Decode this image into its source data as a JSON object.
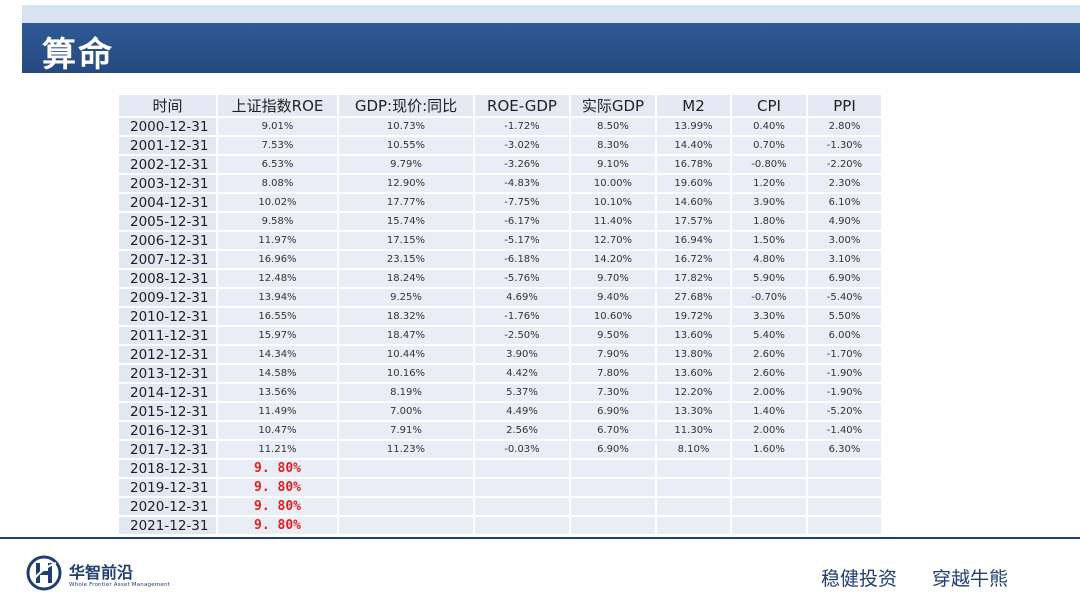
{
  "page": {
    "title": "算命"
  },
  "table": {
    "headers": [
      "时间",
      "上证指数ROE",
      "GDP:现价:同比",
      "ROE-GDP",
      "实际GDP",
      "M2",
      "CPI",
      "PPI"
    ],
    "rows": [
      [
        "2000-12-31",
        "9.01%",
        "10.73%",
        "-1.72%",
        "8.50%",
        "13.99%",
        "0.40%",
        "2.80%"
      ],
      [
        "2001-12-31",
        "7.53%",
        "10.55%",
        "-3.02%",
        "8.30%",
        "14.40%",
        "0.70%",
        "-1.30%"
      ],
      [
        "2002-12-31",
        "6.53%",
        "9.79%",
        "-3.26%",
        "9.10%",
        "16.78%",
        "-0.80%",
        "-2.20%"
      ],
      [
        "2003-12-31",
        "8.08%",
        "12.90%",
        "-4.83%",
        "10.00%",
        "19.60%",
        "1.20%",
        "2.30%"
      ],
      [
        "2004-12-31",
        "10.02%",
        "17.77%",
        "-7.75%",
        "10.10%",
        "14.60%",
        "3.90%",
        "6.10%"
      ],
      [
        "2005-12-31",
        "9.58%",
        "15.74%",
        "-6.17%",
        "11.40%",
        "17.57%",
        "1.80%",
        "4.90%"
      ],
      [
        "2006-12-31",
        "11.97%",
        "17.15%",
        "-5.17%",
        "12.70%",
        "16.94%",
        "1.50%",
        "3.00%"
      ],
      [
        "2007-12-31",
        "16.96%",
        "23.15%",
        "-6.18%",
        "14.20%",
        "16.72%",
        "4.80%",
        "3.10%"
      ],
      [
        "2008-12-31",
        "12.48%",
        "18.24%",
        "-5.76%",
        "9.70%",
        "17.82%",
        "5.90%",
        "6.90%"
      ],
      [
        "2009-12-31",
        "13.94%",
        "9.25%",
        "4.69%",
        "9.40%",
        "27.68%",
        "-0.70%",
        "-5.40%"
      ],
      [
        "2010-12-31",
        "16.55%",
        "18.32%",
        "-1.76%",
        "10.60%",
        "19.72%",
        "3.30%",
        "5.50%"
      ],
      [
        "2011-12-31",
        "15.97%",
        "18.47%",
        "-2.50%",
        "9.50%",
        "13.60%",
        "5.40%",
        "6.00%"
      ],
      [
        "2012-12-31",
        "14.34%",
        "10.44%",
        "3.90%",
        "7.90%",
        "13.80%",
        "2.60%",
        "-1.70%"
      ],
      [
        "2013-12-31",
        "14.58%",
        "10.16%",
        "4.42%",
        "7.80%",
        "13.60%",
        "2.60%",
        "-1.90%"
      ],
      [
        "2014-12-31",
        "13.56%",
        "8.19%",
        "5.37%",
        "7.30%",
        "12.20%",
        "2.00%",
        "-1.90%"
      ],
      [
        "2015-12-31",
        "11.49%",
        "7.00%",
        "4.49%",
        "6.90%",
        "13.30%",
        "1.40%",
        "-5.20%"
      ],
      [
        "2016-12-31",
        "10.47%",
        "7.91%",
        "2.56%",
        "6.70%",
        "11.30%",
        "2.00%",
        "-1.40%"
      ],
      [
        "2017-12-31",
        "11.21%",
        "11.23%",
        "-0.03%",
        "6.90%",
        "8.10%",
        "1.60%",
        "6.30%"
      ],
      [
        "2018-12-31",
        "9. 80%",
        "",
        "",
        "",
        "",
        "",
        ""
      ],
      [
        "2019-12-31",
        "9. 80%",
        "",
        "",
        "",
        "",
        "",
        ""
      ],
      [
        "2020-12-31",
        "9. 80%",
        "",
        "",
        "",
        "",
        "",
        ""
      ],
      [
        "2021-12-31",
        "9. 80%",
        "",
        "",
        "",
        "",
        "",
        ""
      ]
    ],
    "highlight_color": "#e02020"
  },
  "footer": {
    "logo_text": "华智前沿",
    "logo_sub": "Whole Frontier Asset Management",
    "slogan_1": "稳健投资",
    "slogan_2": "穿越牛熊"
  },
  "colors": {
    "brand": "#25497f",
    "table_bg": "#e9eef6"
  }
}
